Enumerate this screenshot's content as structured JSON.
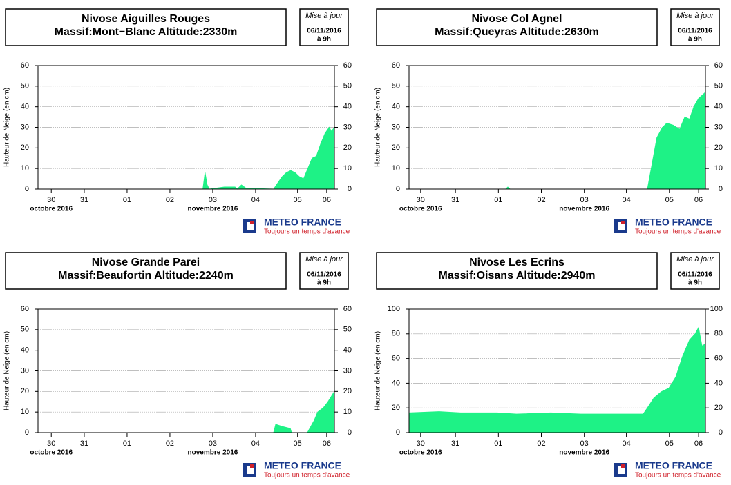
{
  "chart_data": [
    {
      "type": "area",
      "title": "Nivose Aiguilles Rouges",
      "subtitle": "Massif:Mont−Blanc Altitude:2330m",
      "update": {
        "label": "Mise à jour",
        "date": "06/11/2016",
        "time": "à 9h"
      },
      "ylabel": "Hauteur de Neige (en cm)",
      "color": "#1ef286",
      "grid": true,
      "ylim": [
        0,
        60
      ],
      "yticks": [
        0,
        10,
        20,
        30,
        40,
        50,
        60
      ],
      "xlim": [
        0,
        6.92
      ],
      "xticks": [
        {
          "value": 0.31,
          "label": "30"
        },
        {
          "value": 1.08,
          "label": "31"
        },
        {
          "value": 2.08,
          "label": "01"
        },
        {
          "value": 3.08,
          "label": "02"
        },
        {
          "value": 4.08,
          "label": "03"
        },
        {
          "value": 5.08,
          "label": "04"
        },
        {
          "value": 6.06,
          "label": "05"
        },
        {
          "value": 6.74,
          "label": "06"
        }
      ],
      "months": [
        "octobre 2016",
        "novembre 2016"
      ],
      "x": [
        0,
        3.85,
        3.9,
        3.95,
        4.0,
        4.35,
        4.6,
        4.65,
        4.75,
        4.85,
        5.5,
        5.6,
        5.7,
        5.8,
        5.9,
        6.0,
        6.1,
        6.2,
        6.3,
        6.4,
        6.5,
        6.6,
        6.7,
        6.8,
        6.85,
        6.92
      ],
      "values": [
        0,
        0,
        8,
        2,
        0,
        1,
        1,
        0,
        2,
        0.5,
        0,
        3,
        6,
        8,
        9,
        8,
        6,
        5,
        10,
        15,
        16,
        22,
        27,
        30,
        28,
        30
      ]
    },
    {
      "type": "area",
      "title": "Nivose Col Agnel",
      "subtitle": "Massif:Queyras Altitude:2630m",
      "update": {
        "label": "Mise à jour",
        "date": "06/11/2016",
        "time": "à 9h"
      },
      "ylabel": "Hauteur de Neige (en cm)",
      "color": "#1ef286",
      "grid": true,
      "ylim": [
        0,
        60
      ],
      "yticks": [
        0,
        10,
        20,
        30,
        40,
        50,
        60
      ],
      "xlim": [
        0,
        6.9
      ],
      "xticks": [
        {
          "value": 0.27,
          "label": "30"
        },
        {
          "value": 1.08,
          "label": "31"
        },
        {
          "value": 2.08,
          "label": "01"
        },
        {
          "value": 3.08,
          "label": "02"
        },
        {
          "value": 4.08,
          "label": "03"
        },
        {
          "value": 5.06,
          "label": "04"
        },
        {
          "value": 6.06,
          "label": "05"
        },
        {
          "value": 6.74,
          "label": "06"
        }
      ],
      "months": [
        "octobre 2016",
        "novembre 2016"
      ],
      "x": [
        0,
        2.25,
        2.3,
        2.35,
        5.55,
        5.77,
        5.9,
        6.0,
        6.15,
        6.3,
        6.42,
        6.53,
        6.63,
        6.74,
        6.9
      ],
      "values": [
        0,
        0,
        1,
        0,
        0,
        25,
        30,
        32,
        31,
        29,
        35,
        34,
        40,
        44,
        47
      ]
    },
    {
      "type": "area",
      "title": "Nivose Grande Parei",
      "subtitle": "Massif:Beaufortin Altitude:2240m",
      "update": {
        "label": "Mise à jour",
        "date": "06/11/2016",
        "time": "à 9h"
      },
      "ylabel": "Hauteur de Neige (en cm)",
      "color": "#1ef286",
      "grid": true,
      "ylim": [
        0,
        60
      ],
      "yticks": [
        0,
        10,
        20,
        30,
        40,
        50,
        60
      ],
      "xlim": [
        0,
        6.92
      ],
      "xticks": [
        {
          "value": 0.31,
          "label": "30"
        },
        {
          "value": 1.08,
          "label": "31"
        },
        {
          "value": 2.08,
          "label": "01"
        },
        {
          "value": 3.08,
          "label": "02"
        },
        {
          "value": 4.08,
          "label": "03"
        },
        {
          "value": 5.08,
          "label": "04"
        },
        {
          "value": 6.06,
          "label": "05"
        },
        {
          "value": 6.74,
          "label": "06"
        }
      ],
      "months": [
        "octobre 2016",
        "novembre 2016"
      ],
      "x": [
        0,
        5.5,
        5.55,
        5.7,
        5.89,
        5.92,
        6.29,
        6.45,
        6.53,
        6.66,
        6.77,
        6.92
      ],
      "values": [
        0,
        0,
        4,
        3,
        2,
        0,
        0,
        6,
        10,
        12,
        15,
        20
      ]
    },
    {
      "type": "area",
      "title": "Nivose Les Ecrins",
      "subtitle": "Massif:Oisans Altitude:2940m",
      "update": {
        "label": "Mise à jour",
        "date": "06/11/2016",
        "time": "à 9h"
      },
      "ylabel": "Hauteur de Neige (en cm)",
      "color": "#1ef286",
      "grid": true,
      "ylim": [
        0,
        100
      ],
      "yticks": [
        0,
        20,
        40,
        60,
        80,
        100
      ],
      "xlim": [
        0,
        6.9
      ],
      "xticks": [
        {
          "value": 0.27,
          "label": "30"
        },
        {
          "value": 1.08,
          "label": "31"
        },
        {
          "value": 2.08,
          "label": "01"
        },
        {
          "value": 3.08,
          "label": "02"
        },
        {
          "value": 4.08,
          "label": "03"
        },
        {
          "value": 5.06,
          "label": "04"
        },
        {
          "value": 6.06,
          "label": "05"
        },
        {
          "value": 6.74,
          "label": "06"
        }
      ],
      "months": [
        "octobre 2016",
        "novembre 2016"
      ],
      "x": [
        0,
        0.7,
        1.2,
        2.05,
        2.5,
        3.3,
        4.0,
        4.8,
        5.45,
        5.55,
        5.7,
        5.87,
        6.05,
        6.21,
        6.37,
        6.53,
        6.66,
        6.74,
        6.82,
        6.9
      ],
      "values": [
        16,
        17,
        16,
        16,
        15,
        16,
        15,
        15,
        15,
        20,
        28,
        33,
        36,
        45,
        62,
        75,
        80,
        85,
        70,
        72
      ]
    }
  ],
  "logo": {
    "name": "METEO FRANCE",
    "tagline": "Toujours un temps d'avance"
  }
}
